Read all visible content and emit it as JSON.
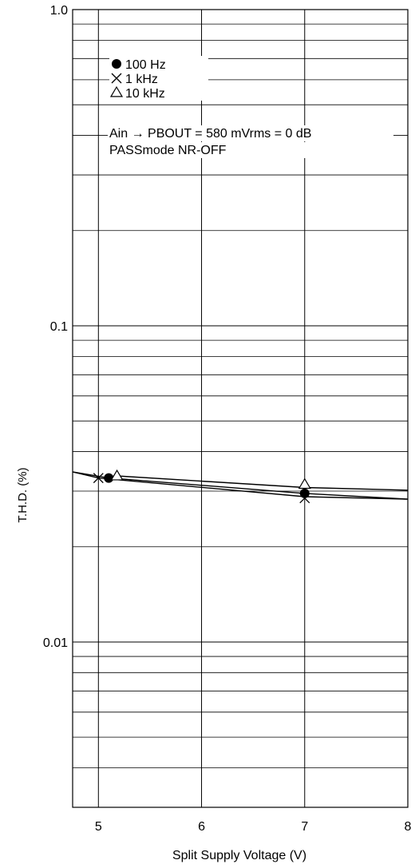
{
  "chart_data": {
    "type": "line",
    "title": "",
    "xlabel": "Split Supply Voltage  (V)",
    "ylabel": "T.H.D. (%)",
    "xlim": [
      4.75,
      8
    ],
    "ylim": [
      0.003,
      1.0
    ],
    "y_scale": "log",
    "grid": true,
    "x_ticks": [
      {
        "value": 5,
        "label": "5"
      },
      {
        "value": 6,
        "label": "6"
      },
      {
        "value": 7,
        "label": "7"
      },
      {
        "value": 8,
        "label": "8"
      }
    ],
    "y_ticks": [
      {
        "value": 1.0,
        "label": "1.0"
      },
      {
        "value": 0.1,
        "label": "0.1"
      },
      {
        "value": 0.01,
        "label": "0.01"
      }
    ],
    "legend_position": "top-left",
    "annotations": [
      "Ain → PBOUT = 580 mVrms = 0 dB",
      "PASSmode  NR-OFF"
    ],
    "series": [
      {
        "name": "100 Hz",
        "marker": "circle-filled",
        "points": [
          [
            5.1,
            0.033
          ],
          [
            7.0,
            0.0295
          ]
        ],
        "curve": [
          [
            4.75,
            0.0345
          ],
          [
            5.1,
            0.033
          ],
          [
            7.0,
            0.0295
          ],
          [
            8.0,
            0.0283
          ]
        ]
      },
      {
        "name": "1 kHz",
        "marker": "cross",
        "points": [
          [
            5.0,
            0.033
          ],
          [
            7.0,
            0.0285
          ]
        ],
        "curve": [
          [
            4.75,
            0.0345
          ],
          [
            5.0,
            0.033
          ],
          [
            7.0,
            0.0288
          ],
          [
            8.0,
            0.0283
          ]
        ]
      },
      {
        "name": "10 kHz",
        "marker": "triangle-open",
        "points": [
          [
            5.18,
            0.0335
          ],
          [
            7.0,
            0.0315
          ]
        ],
        "curve": [
          [
            5.1,
            0.0333
          ],
          [
            5.18,
            0.0335
          ],
          [
            7.0,
            0.0308
          ],
          [
            8.0,
            0.0302
          ]
        ]
      }
    ]
  }
}
